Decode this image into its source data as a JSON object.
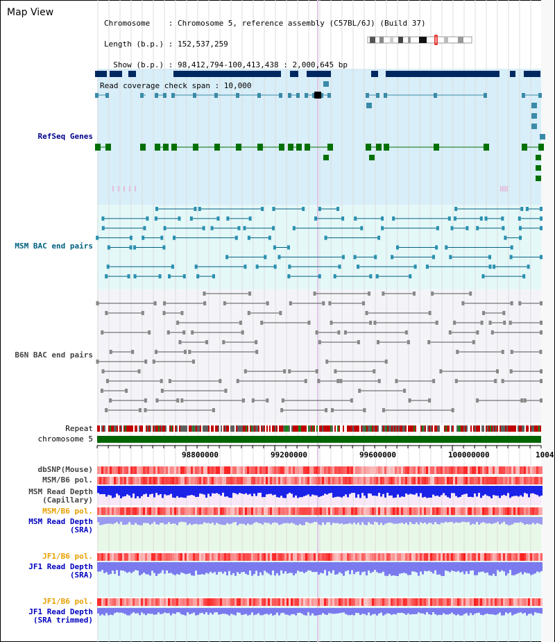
{
  "app": {
    "title": "Map View"
  },
  "info": {
    "chromosome_line": "Chromosome    : Chromosome 5, reference assembly (C57BL/6J) (Build 37)",
    "length_line": "Length (b.p.) : 152,537,259",
    "show_line": "  Show (b.p.) : 98,412,794-100,413,438 : 2,000,645 bp",
    "coverage_line": "Read coverage check span : 10,000"
  },
  "tracks": {
    "refseq": {
      "label": "RefSeq Genes",
      "color": "#00008b"
    },
    "msm_bac": {
      "label": "MSM BAC end pairs",
      "color": "#006080"
    },
    "b6n_bac": {
      "label": "B6N BAC end pairs",
      "color": "#444444"
    },
    "repeat": {
      "label": "Repeat"
    },
    "chromosome": {
      "label": "chromosome 5",
      "color": "#006400"
    },
    "dbsnp": {
      "label": "dbSNP(Mouse)"
    },
    "msm_b6_pol": {
      "label": "MSM/B6 pol."
    },
    "msm_depth_cap": {
      "label1": "MSM Read Depth",
      "label2": "(Capillary)"
    },
    "msm_b6_pol2": {
      "label": "MSM/B6 pol.",
      "color": "#e8a000"
    },
    "msm_depth_sra": {
      "label1": "MSM Read Depth",
      "label2": "(SRA)",
      "color": "#0000c0"
    },
    "jf1_pol": {
      "label": "JF1/B6 pol.",
      "color": "#e8a000"
    },
    "jf1_depth_sra": {
      "label1": "JF1 Read Depth",
      "label2": "(SRA)",
      "color": "#0000c0"
    },
    "jf1_pol2": {
      "label": "JF1/B6 pol.",
      "color": "#e8a000"
    },
    "jf1_depth_trim": {
      "label1": "JF1 Read Depth",
      "label2": "(SRA trimmed)",
      "color": "#0000c0"
    }
  },
  "axis": {
    "ticks": [
      "98800000",
      "99200000",
      "99600000",
      "100000000",
      "1004"
    ]
  }
}
